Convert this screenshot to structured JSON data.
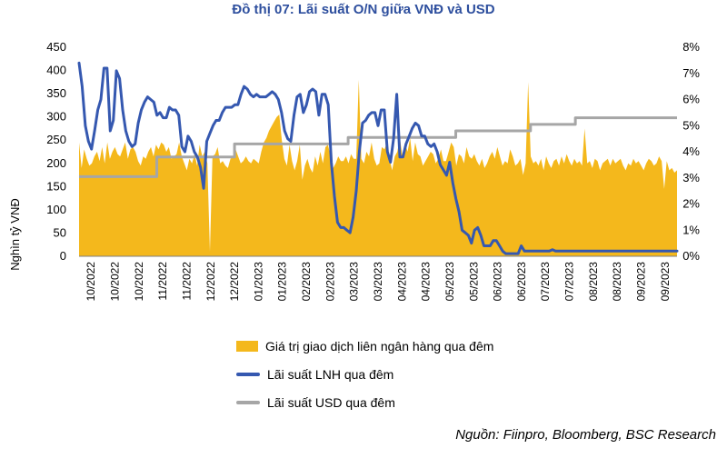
{
  "chart_data": {
    "type": "area+line",
    "title": "Đồ thị 07: Lãi suất O/N giữa VNĐ và USD",
    "ylabel": "Nghìn tỷ VNĐ",
    "y_left": {
      "min": 0,
      "max": 450,
      "ticks": [
        "0",
        "50",
        "100",
        "150",
        "200",
        "250",
        "300",
        "350",
        "400",
        "450"
      ]
    },
    "y_right": {
      "min": 0,
      "max": 8,
      "ticks": [
        "0%",
        "1%",
        "2%",
        "3%",
        "4%",
        "5%",
        "6%",
        "7%",
        "8%"
      ]
    },
    "x_labels": [
      "10/2022",
      "10/2022",
      "10/2022",
      "11/2022",
      "11/2022",
      "12/2022",
      "12/2022",
      "01/2023",
      "01/2023",
      "02/2023",
      "02/2023",
      "03/2023",
      "03/2023",
      "04/2023",
      "04/2023",
      "05/2023",
      "05/2023",
      "06/2023",
      "06/2023",
      "07/2023",
      "07/2023",
      "08/2023",
      "08/2023",
      "09/2023",
      "09/2023"
    ],
    "series": [
      {
        "name": "Giá trị giao dịch liên ngân hàng qua đêm",
        "axis": "left",
        "color": "#f4b81c",
        "values": [
          245,
          190,
          230,
          210,
          195,
          200,
          215,
          225,
          205,
          235,
          200,
          245,
          210,
          225,
          235,
          220,
          215,
          230,
          245,
          210,
          230,
          235,
          225,
          205,
          195,
          215,
          210,
          225,
          235,
          215,
          240,
          230,
          245,
          240,
          225,
          235,
          210,
          215,
          220,
          245,
          215,
          200,
          185,
          210,
          200,
          220,
          195,
          240,
          215,
          225,
          200,
          10,
          215,
          220,
          235,
          200,
          205,
          195,
          190,
          210,
          215,
          230,
          215,
          200,
          205,
          215,
          205,
          200,
          210,
          205,
          200,
          225,
          245,
          255,
          270,
          280,
          290,
          300,
          305,
          250,
          210,
          195,
          240,
          205,
          185,
          205,
          240,
          165,
          195,
          210,
          190,
          180,
          215,
          195,
          225,
          200,
          235,
          240,
          215,
          190,
          200,
          215,
          205,
          205,
          215,
          200,
          220,
          210,
          210,
          380,
          210,
          200,
          225,
          215,
          245,
          210,
          195,
          200,
          235,
          230,
          245,
          210,
          185,
          215,
          225,
          255,
          215,
          245,
          225,
          255,
          205,
          245,
          220,
          215,
          195,
          205,
          215,
          225,
          220,
          200,
          210,
          230,
          205,
          205,
          225,
          245,
          235,
          195,
          220,
          215,
          200,
          235,
          215,
          210,
          220,
          205,
          195,
          210,
          190,
          200,
          215,
          225,
          210,
          235,
          215,
          195,
          205,
          200,
          230,
          215,
          195,
          200,
          210,
          175,
          200,
          375,
          215,
          200,
          205,
          195,
          210,
          185,
          215,
          200,
          190,
          205,
          210,
          195,
          215,
          200,
          220,
          205,
          195,
          210,
          200,
          205,
          195,
          275,
          200,
          205,
          190,
          210,
          205,
          185,
          200,
          205,
          210,
          195,
          210,
          200,
          205,
          210,
          195,
          185,
          200,
          195,
          210,
          200,
          205,
          195,
          185,
          200,
          210,
          205,
          195,
          200,
          215,
          205,
          145,
          205,
          185,
          190,
          180,
          185
        ]
      },
      {
        "name": "Lãi suất LNH qua đêm",
        "axis": "right",
        "color": "#3558b0",
        "values": [
          7.4,
          6.5,
          5.0,
          4.4,
          4.1,
          4.8,
          5.6,
          6.0,
          7.2,
          7.2,
          4.8,
          5.2,
          7.1,
          6.8,
          5.6,
          4.8,
          4.4,
          4.2,
          4.3,
          5.1,
          5.6,
          5.9,
          6.1,
          6.0,
          5.9,
          5.4,
          5.5,
          5.3,
          5.3,
          5.7,
          5.6,
          5.6,
          5.4,
          4.2,
          4.0,
          4.6,
          4.4,
          4.0,
          3.8,
          3.4,
          2.6,
          4.4,
          4.7,
          5.0,
          5.2,
          5.2,
          5.5,
          5.7,
          5.7,
          5.7,
          5.8,
          5.8,
          6.2,
          6.5,
          6.4,
          6.2,
          6.1,
          6.2,
          6.1,
          6.1,
          6.1,
          6.2,
          6.3,
          6.2,
          6.0,
          5.5,
          4.8,
          4.5,
          4.4,
          5.4,
          6.1,
          6.2,
          5.5,
          5.8,
          6.3,
          6.4,
          6.3,
          5.4,
          6.2,
          6.2,
          5.8,
          3.6,
          2.3,
          1.3,
          1.1,
          1.1,
          1.0,
          0.9,
          1.5,
          2.5,
          4.0,
          5.1,
          5.2,
          5.4,
          5.5,
          5.5,
          5.0,
          5.6,
          5.6,
          4.0,
          3.6,
          4.5,
          6.2,
          3.8,
          3.8,
          4.3,
          4.6,
          4.9,
          5.1,
          5.0,
          4.6,
          4.6,
          4.3,
          4.2,
          4.3,
          4.0,
          3.5,
          3.3,
          3.1,
          3.6,
          2.8,
          2.2,
          1.7,
          1.0,
          0.9,
          0.8,
          0.5,
          1.0,
          1.1,
          0.8,
          0.4,
          0.4,
          0.4,
          0.6,
          0.6,
          0.4,
          0.2,
          0.1,
          0.1,
          0.1,
          0.1,
          0.1,
          0.4,
          0.2,
          0.2,
          0.2,
          0.2,
          0.2,
          0.2,
          0.2,
          0.2,
          0.2,
          0.25,
          0.2,
          0.2,
          0.2,
          0.2,
          0.2,
          0.2,
          0.2,
          0.2,
          0.2,
          0.2,
          0.2,
          0.2,
          0.2,
          0.2,
          0.2,
          0.2,
          0.2,
          0.2,
          0.2,
          0.2,
          0.2,
          0.2,
          0.2,
          0.2,
          0.2,
          0.2,
          0.2,
          0.2,
          0.2,
          0.2,
          0.2,
          0.2,
          0.2,
          0.2,
          0.2,
          0.2,
          0.2,
          0.2,
          0.2,
          0.2
        ]
      },
      {
        "name": "Lãi suất USD qua đêm",
        "axis": "right",
        "color": "#a6a6a6",
        "steps": [
          {
            "from": 0,
            "to": 0.13,
            "value": 3.05
          },
          {
            "from": 0.13,
            "to": 0.26,
            "value": 3.8
          },
          {
            "from": 0.26,
            "to": 0.45,
            "value": 4.3
          },
          {
            "from": 0.45,
            "to": 0.63,
            "value": 4.55
          },
          {
            "from": 0.63,
            "to": 0.755,
            "value": 4.8
          },
          {
            "from": 0.755,
            "to": 0.83,
            "value": 5.05
          },
          {
            "from": 0.83,
            "to": 1.0,
            "value": 5.3
          }
        ]
      }
    ]
  },
  "legend": {
    "area_label": "Giá trị giao dịch liên ngân hàng qua đêm",
    "lnh_label": "Lãi suất LNH qua đêm",
    "usd_label": "Lãi suất USD qua đêm"
  },
  "source": "Nguồn: Fiinpro, Bloomberg, BSC Research",
  "colors": {
    "title": "#2e4f9e",
    "area": "#f4b81c",
    "lnh": "#3558b0",
    "usd": "#a6a6a6"
  }
}
